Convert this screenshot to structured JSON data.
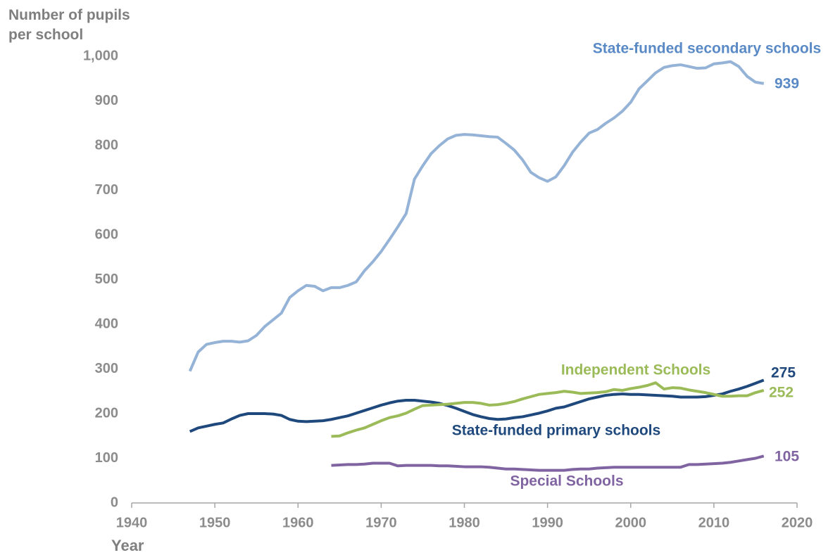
{
  "chart_data": {
    "type": "line",
    "ylabel": "Number of pupils\nper school",
    "xlabel": "Year",
    "x": [
      1947,
      1948,
      1949,
      1950,
      1951,
      1952,
      1953,
      1954,
      1955,
      1956,
      1957,
      1958,
      1959,
      1960,
      1961,
      1962,
      1963,
      1964,
      1965,
      1966,
      1967,
      1968,
      1969,
      1970,
      1971,
      1972,
      1973,
      1974,
      1975,
      1976,
      1977,
      1978,
      1979,
      1980,
      1981,
      1982,
      1983,
      1984,
      1985,
      1986,
      1987,
      1988,
      1989,
      1990,
      1991,
      1992,
      1993,
      1994,
      1995,
      1996,
      1997,
      1998,
      1999,
      2000,
      2001,
      2002,
      2003,
      2004,
      2005,
      2006,
      2007,
      2008,
      2009,
      2010,
      2011,
      2012,
      2013,
      2014,
      2015,
      2016
    ],
    "series": [
      {
        "name": "State-funded secondary schools",
        "color": "#95b3d7",
        "label_color": "#5a8ac6",
        "values": [
          295,
          338,
          355,
          359,
          362,
          362,
          360,
          363,
          375,
          395,
          410,
          425,
          460,
          475,
          487,
          485,
          475,
          482,
          482,
          487,
          495,
          520,
          540,
          563,
          590,
          618,
          648,
          725,
          755,
          782,
          800,
          815,
          823,
          825,
          824,
          822,
          820,
          819,
          805,
          790,
          768,
          740,
          728,
          720,
          730,
          755,
          785,
          808,
          828,
          836,
          850,
          862,
          877,
          897,
          927,
          945,
          963,
          975,
          979,
          981,
          977,
          973,
          974,
          983,
          985,
          988,
          977,
          955,
          942,
          939
        ]
      },
      {
        "name": "State-funded primary schools",
        "color": "#1f497d",
        "label_color": "#1f497d",
        "values": [
          160,
          168,
          172,
          176,
          179,
          188,
          196,
          200,
          200,
          200,
          199,
          196,
          187,
          183,
          182,
          183,
          184,
          187,
          191,
          195,
          201,
          207,
          213,
          219,
          224,
          228,
          230,
          230,
          228,
          226,
          223,
          218,
          212,
          205,
          198,
          193,
          189,
          187,
          188,
          191,
          193,
          197,
          201,
          206,
          212,
          215,
          221,
          227,
          233,
          237,
          241,
          243,
          244,
          243,
          243,
          242,
          241,
          240,
          239,
          237,
          237,
          237,
          238,
          241,
          244,
          250,
          255,
          261,
          268,
          275
        ]
      },
      {
        "name": "Independent Schools",
        "color": "#9bbb59",
        "label_color": "#9bbb59",
        "values": [
          null,
          null,
          null,
          null,
          null,
          null,
          null,
          null,
          null,
          null,
          null,
          null,
          null,
          null,
          null,
          null,
          null,
          149,
          150,
          157,
          163,
          168,
          176,
          184,
          191,
          195,
          201,
          210,
          218,
          219,
          220,
          221,
          223,
          225,
          225,
          223,
          219,
          220,
          223,
          227,
          233,
          238,
          243,
          245,
          247,
          250,
          248,
          245,
          246,
          247,
          249,
          254,
          252,
          256,
          259,
          263,
          269,
          255,
          258,
          257,
          253,
          250,
          247,
          243,
          239,
          239,
          240,
          240,
          247,
          252
        ]
      },
      {
        "name": "Special Schools",
        "color": "#8064a2",
        "label_color": "#8064a2",
        "values": [
          null,
          null,
          null,
          null,
          null,
          null,
          null,
          null,
          null,
          null,
          null,
          null,
          null,
          null,
          null,
          null,
          null,
          84,
          85,
          86,
          86,
          87,
          89,
          89,
          89,
          83,
          84,
          84,
          84,
          84,
          83,
          83,
          82,
          81,
          81,
          81,
          80,
          78,
          76,
          76,
          75,
          74,
          73,
          73,
          73,
          73,
          75,
          76,
          76,
          78,
          79,
          80,
          80,
          80,
          80,
          80,
          80,
          80,
          80,
          80,
          86,
          86,
          87,
          88,
          89,
          91,
          94,
          97,
          100,
          105
        ]
      }
    ],
    "xlim": [
      1940,
      2020
    ],
    "xticks": [
      1940,
      1950,
      1960,
      1970,
      1980,
      1990,
      2000,
      2010,
      2020
    ],
    "ylim": [
      0,
      1000
    ],
    "yticks": [
      0,
      100,
      200,
      300,
      400,
      500,
      600,
      700,
      800,
      900,
      {
        "value": 1000,
        "label": "1,000"
      }
    ]
  }
}
